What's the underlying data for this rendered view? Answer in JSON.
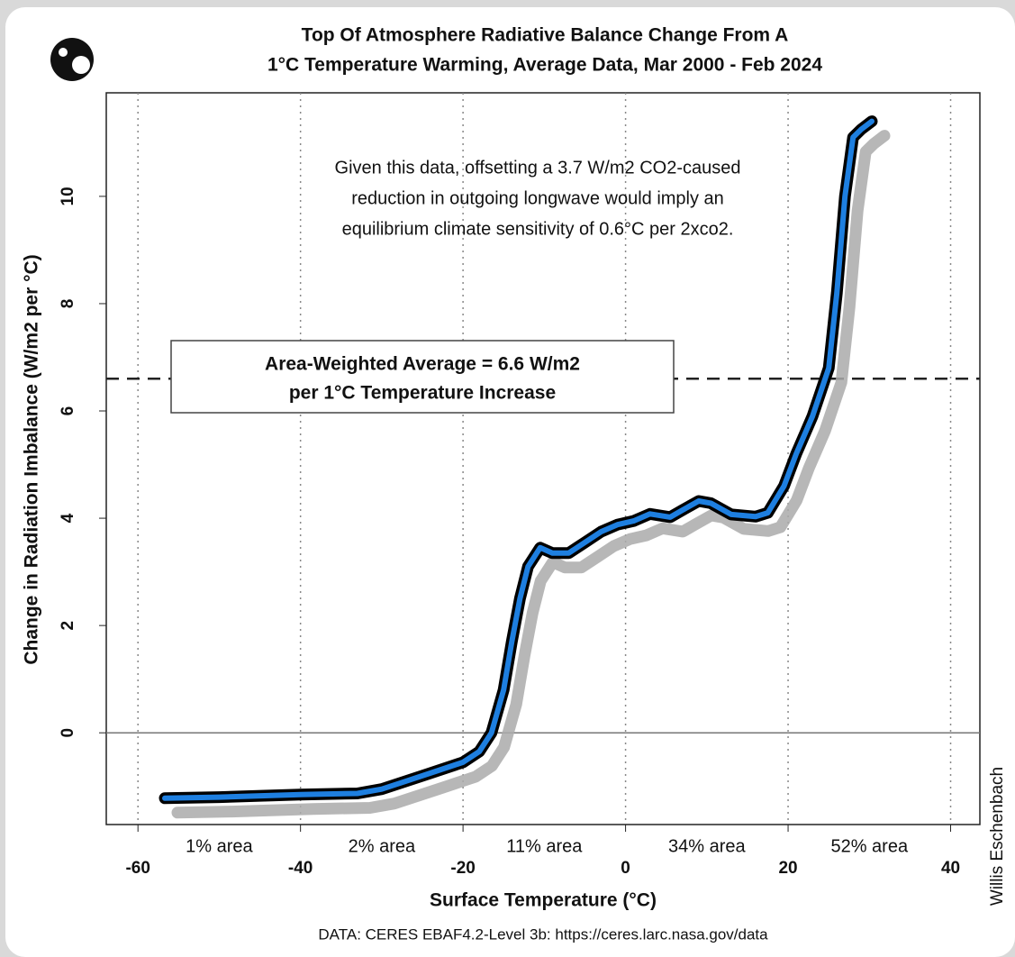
{
  "chart_data": {
    "type": "line",
    "title": [
      "Top Of Atmosphere Radiative Balance Change From A",
      "1°C Temperature Warming, Average Data, Mar 2000 - Feb 2024"
    ],
    "xlabel": "Surface Temperature (°C)",
    "ylabel": "Change in Radiation Imbalance (W/m2 per °C)",
    "source": "DATA: CERES EBAF4.2-Level 3b: https://ceres.larc.nasa.gov/data",
    "credit": "Willis Eschenbach",
    "annotation": [
      "Given this data, offsetting a 3.7 W/m2 CO2-caused",
      "reduction in outgoing longwave would imply an",
      "equilibrium climate sensitivity of 0.6°C per 2xco2."
    ],
    "reference": {
      "value": 6.6,
      "label": [
        "Area-Weighted Average = 6.6 W/m2",
        "per 1°C Temperature Increase"
      ]
    },
    "regions": [
      {
        "label": "1% area",
        "from": -60,
        "to": -40
      },
      {
        "label": "2% area",
        "from": -40,
        "to": -20
      },
      {
        "label": "11% area",
        "from": -20,
        "to": 0
      },
      {
        "label": "34% area",
        "from": 0,
        "to": 20
      },
      {
        "label": "52% area",
        "from": 20,
        "to": 40
      }
    ],
    "x": [
      -56.7,
      -50,
      -40,
      -33,
      -30,
      -27,
      -24,
      -20,
      -18,
      -16.5,
      -15,
      -14,
      -13,
      -12,
      -10.5,
      -9,
      -7,
      -5,
      -3,
      -1,
      1,
      3,
      5.5,
      7,
      9,
      10.5,
      13,
      16,
      17.5,
      19.5,
      21,
      23,
      25,
      26,
      27,
      28,
      29,
      30.3
    ],
    "series": [
      {
        "color": "#1e7fe0",
        "values": [
          -1.22,
          -1.2,
          -1.15,
          -1.13,
          -1.05,
          -0.9,
          -0.75,
          -0.55,
          -0.35,
          0.0,
          0.8,
          1.7,
          2.5,
          3.1,
          3.45,
          3.35,
          3.35,
          3.55,
          3.75,
          3.88,
          3.95,
          4.08,
          4.02,
          4.15,
          4.32,
          4.28,
          4.07,
          4.03,
          4.1,
          4.6,
          5.2,
          5.9,
          6.8,
          8.2,
          10,
          11.1,
          11.25,
          11.4
        ]
      }
    ],
    "xlim": [
      -63.9,
      43.6
    ],
    "ylim": [
      -1.71,
      11.93
    ],
    "xticks": [
      -60,
      -40,
      -20,
      0,
      20,
      40
    ],
    "yticks": [
      0,
      2,
      4,
      6,
      8,
      10
    ],
    "xgrid": true,
    "zero_line": true
  }
}
